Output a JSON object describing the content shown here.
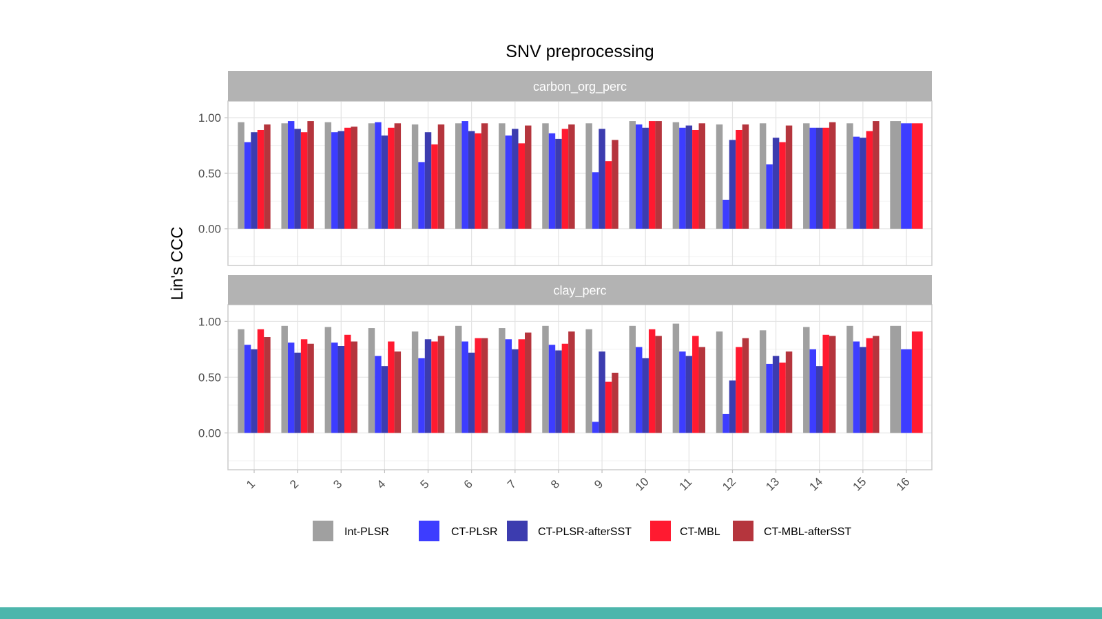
{
  "chart_data": {
    "type": "bar",
    "title": "SNV preprocessing",
    "xlabel": "",
    "ylabel": "Lin's CCC",
    "ylim": [
      -0.33,
      1.15
    ],
    "yticks": [
      "1.00",
      "0.50",
      "0.00"
    ],
    "ytick_values": [
      1.0,
      0.5,
      0.0
    ],
    "grid": true,
    "legend_position": "bottom",
    "categories": [
      "1",
      "2",
      "3",
      "4",
      "5",
      "6",
      "7",
      "8",
      "9",
      "10",
      "11",
      "12",
      "13",
      "14",
      "15",
      "16"
    ],
    "series_meta": [
      {
        "name": "Int-PLSR",
        "color": "#a0a0a0"
      },
      {
        "name": "CT-PLSR",
        "color": "#3d3dff"
      },
      {
        "name": "CT-PLSR-afterSST",
        "color": "#3c3caf"
      },
      {
        "name": "CT-MBL",
        "color": "#ff1a30"
      },
      {
        "name": "CT-MBL-afterSST",
        "color": "#b5353d"
      }
    ],
    "panels": [
      {
        "strip": "carbon_org_perc",
        "series": [
          {
            "name": "Int-PLSR",
            "values": [
              0.96,
              0.95,
              0.96,
              0.95,
              0.94,
              0.95,
              0.95,
              0.95,
              0.95,
              0.97,
              0.96,
              0.94,
              0.95,
              0.95,
              0.95,
              0.97
            ]
          },
          {
            "name": "CT-PLSR",
            "values": [
              0.78,
              0.97,
              0.87,
              0.96,
              0.6,
              0.97,
              0.84,
              0.86,
              0.51,
              0.94,
              0.91,
              0.26,
              0.58,
              0.91,
              0.83,
              0.95
            ]
          },
          {
            "name": "CT-PLSR-afterSST",
            "values": [
              0.87,
              0.9,
              0.88,
              0.84,
              0.87,
              0.88,
              0.9,
              0.81,
              0.9,
              0.91,
              0.93,
              0.8,
              0.82,
              0.91,
              0.82,
              null
            ]
          },
          {
            "name": "CT-MBL",
            "values": [
              0.89,
              0.87,
              0.91,
              0.91,
              0.76,
              0.86,
              0.77,
              0.9,
              0.61,
              0.97,
              0.89,
              0.89,
              0.78,
              0.91,
              0.88,
              0.95
            ]
          },
          {
            "name": "CT-MBL-afterSST",
            "values": [
              0.94,
              0.97,
              0.92,
              0.95,
              0.94,
              0.95,
              0.93,
              0.94,
              0.8,
              0.97,
              0.95,
              0.94,
              0.93,
              0.96,
              0.97,
              null
            ]
          }
        ]
      },
      {
        "strip": "clay_perc",
        "series": [
          {
            "name": "Int-PLSR",
            "values": [
              0.93,
              0.96,
              0.95,
              0.94,
              0.91,
              0.96,
              0.94,
              0.96,
              0.93,
              0.96,
              0.98,
              0.91,
              0.92,
              0.95,
              0.96,
              0.96
            ]
          },
          {
            "name": "CT-PLSR",
            "values": [
              0.79,
              0.81,
              0.81,
              0.69,
              0.67,
              0.82,
              0.84,
              0.79,
              0.1,
              0.77,
              0.73,
              0.17,
              0.62,
              0.75,
              0.82,
              0.75
            ]
          },
          {
            "name": "CT-PLSR-afterSST",
            "values": [
              0.75,
              0.72,
              0.78,
              0.6,
              0.84,
              0.72,
              0.75,
              0.74,
              0.73,
              0.67,
              0.69,
              0.47,
              0.69,
              0.6,
              0.77,
              null
            ]
          },
          {
            "name": "CT-MBL",
            "values": [
              0.93,
              0.84,
              0.88,
              0.82,
              0.82,
              0.85,
              0.84,
              0.8,
              0.46,
              0.93,
              0.87,
              0.77,
              0.63,
              0.88,
              0.85,
              0.91
            ]
          },
          {
            "name": "CT-MBL-afterSST",
            "values": [
              0.86,
              0.8,
              0.82,
              0.73,
              0.87,
              0.85,
              0.9,
              0.91,
              0.54,
              0.87,
              0.77,
              0.85,
              0.73,
              0.87,
              0.87,
              null
            ]
          }
        ]
      }
    ]
  }
}
